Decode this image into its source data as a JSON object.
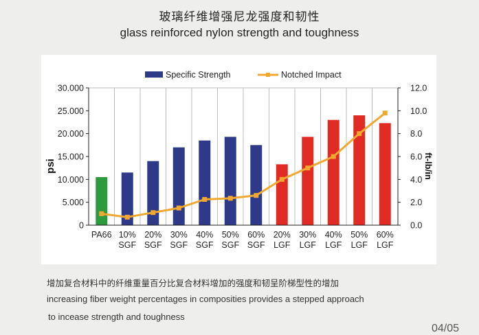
{
  "header": {
    "title_cn": "玻璃纤维增强尼龙强度和韧性",
    "title_en": "glass reinforced nylon strength and toughness"
  },
  "chart_data": {
    "type": "bar",
    "categories": [
      [
        "PA66",
        ""
      ],
      [
        "10%",
        "SGF"
      ],
      [
        "20%",
        "SGF"
      ],
      [
        "30%",
        "SGF"
      ],
      [
        "40%",
        "SGF"
      ],
      [
        "50%",
        "SGF"
      ],
      [
        "60%",
        "SGF"
      ],
      [
        "20%",
        "LGF"
      ],
      [
        "30%",
        "LGF"
      ],
      [
        "40%",
        "LGF"
      ],
      [
        "50%",
        "LGF"
      ],
      [
        "60%",
        "LGF"
      ]
    ],
    "series": [
      {
        "name": "Specific Strength",
        "kind": "bar",
        "axis": "left",
        "color": "#2e3a87",
        "values": [
          10500,
          11500,
          14000,
          17000,
          18500,
          19300,
          17500,
          13300,
          19300,
          23000,
          24000,
          22300
        ],
        "bar_colors": [
          "#2e9a3e",
          "#2e3a87",
          "#2e3a87",
          "#2e3a87",
          "#2e3a87",
          "#2e3a87",
          "#2e3a87",
          "#e02a24",
          "#e02a24",
          "#e02a24",
          "#e02a24",
          "#e02a24"
        ]
      },
      {
        "name": "Notched Impact",
        "kind": "line",
        "axis": "right",
        "color": "#f0a830",
        "values": [
          1.0,
          0.7,
          1.1,
          1.5,
          2.25,
          2.35,
          2.6,
          4.0,
          5.0,
          6.0,
          8.0,
          9.8
        ]
      }
    ],
    "ylabel": "psi",
    "y2label": "ft-lb/in",
    "ylim": [
      0,
      30000
    ],
    "y2lim": [
      0,
      12
    ],
    "yticks": [
      "0",
      "5.000",
      "10.000",
      "15.000",
      "20.000",
      "25.000",
      "30.000"
    ],
    "y2ticks": [
      "0.0",
      "2.0",
      "4.0",
      "6.0",
      "8.0",
      "10.0",
      "12.0"
    ],
    "grid": "vertical",
    "legend_position": "top"
  },
  "caption": {
    "cn": "增加复合材料中的纤维重量百分比复合材料增加的强度和韧呈阶梯型性的增加",
    "en_line1": "increasing fiber weight percentages in composities provides a stepped approach",
    "en_line2": "to incease strength and toughness"
  },
  "page_number": "04/05"
}
